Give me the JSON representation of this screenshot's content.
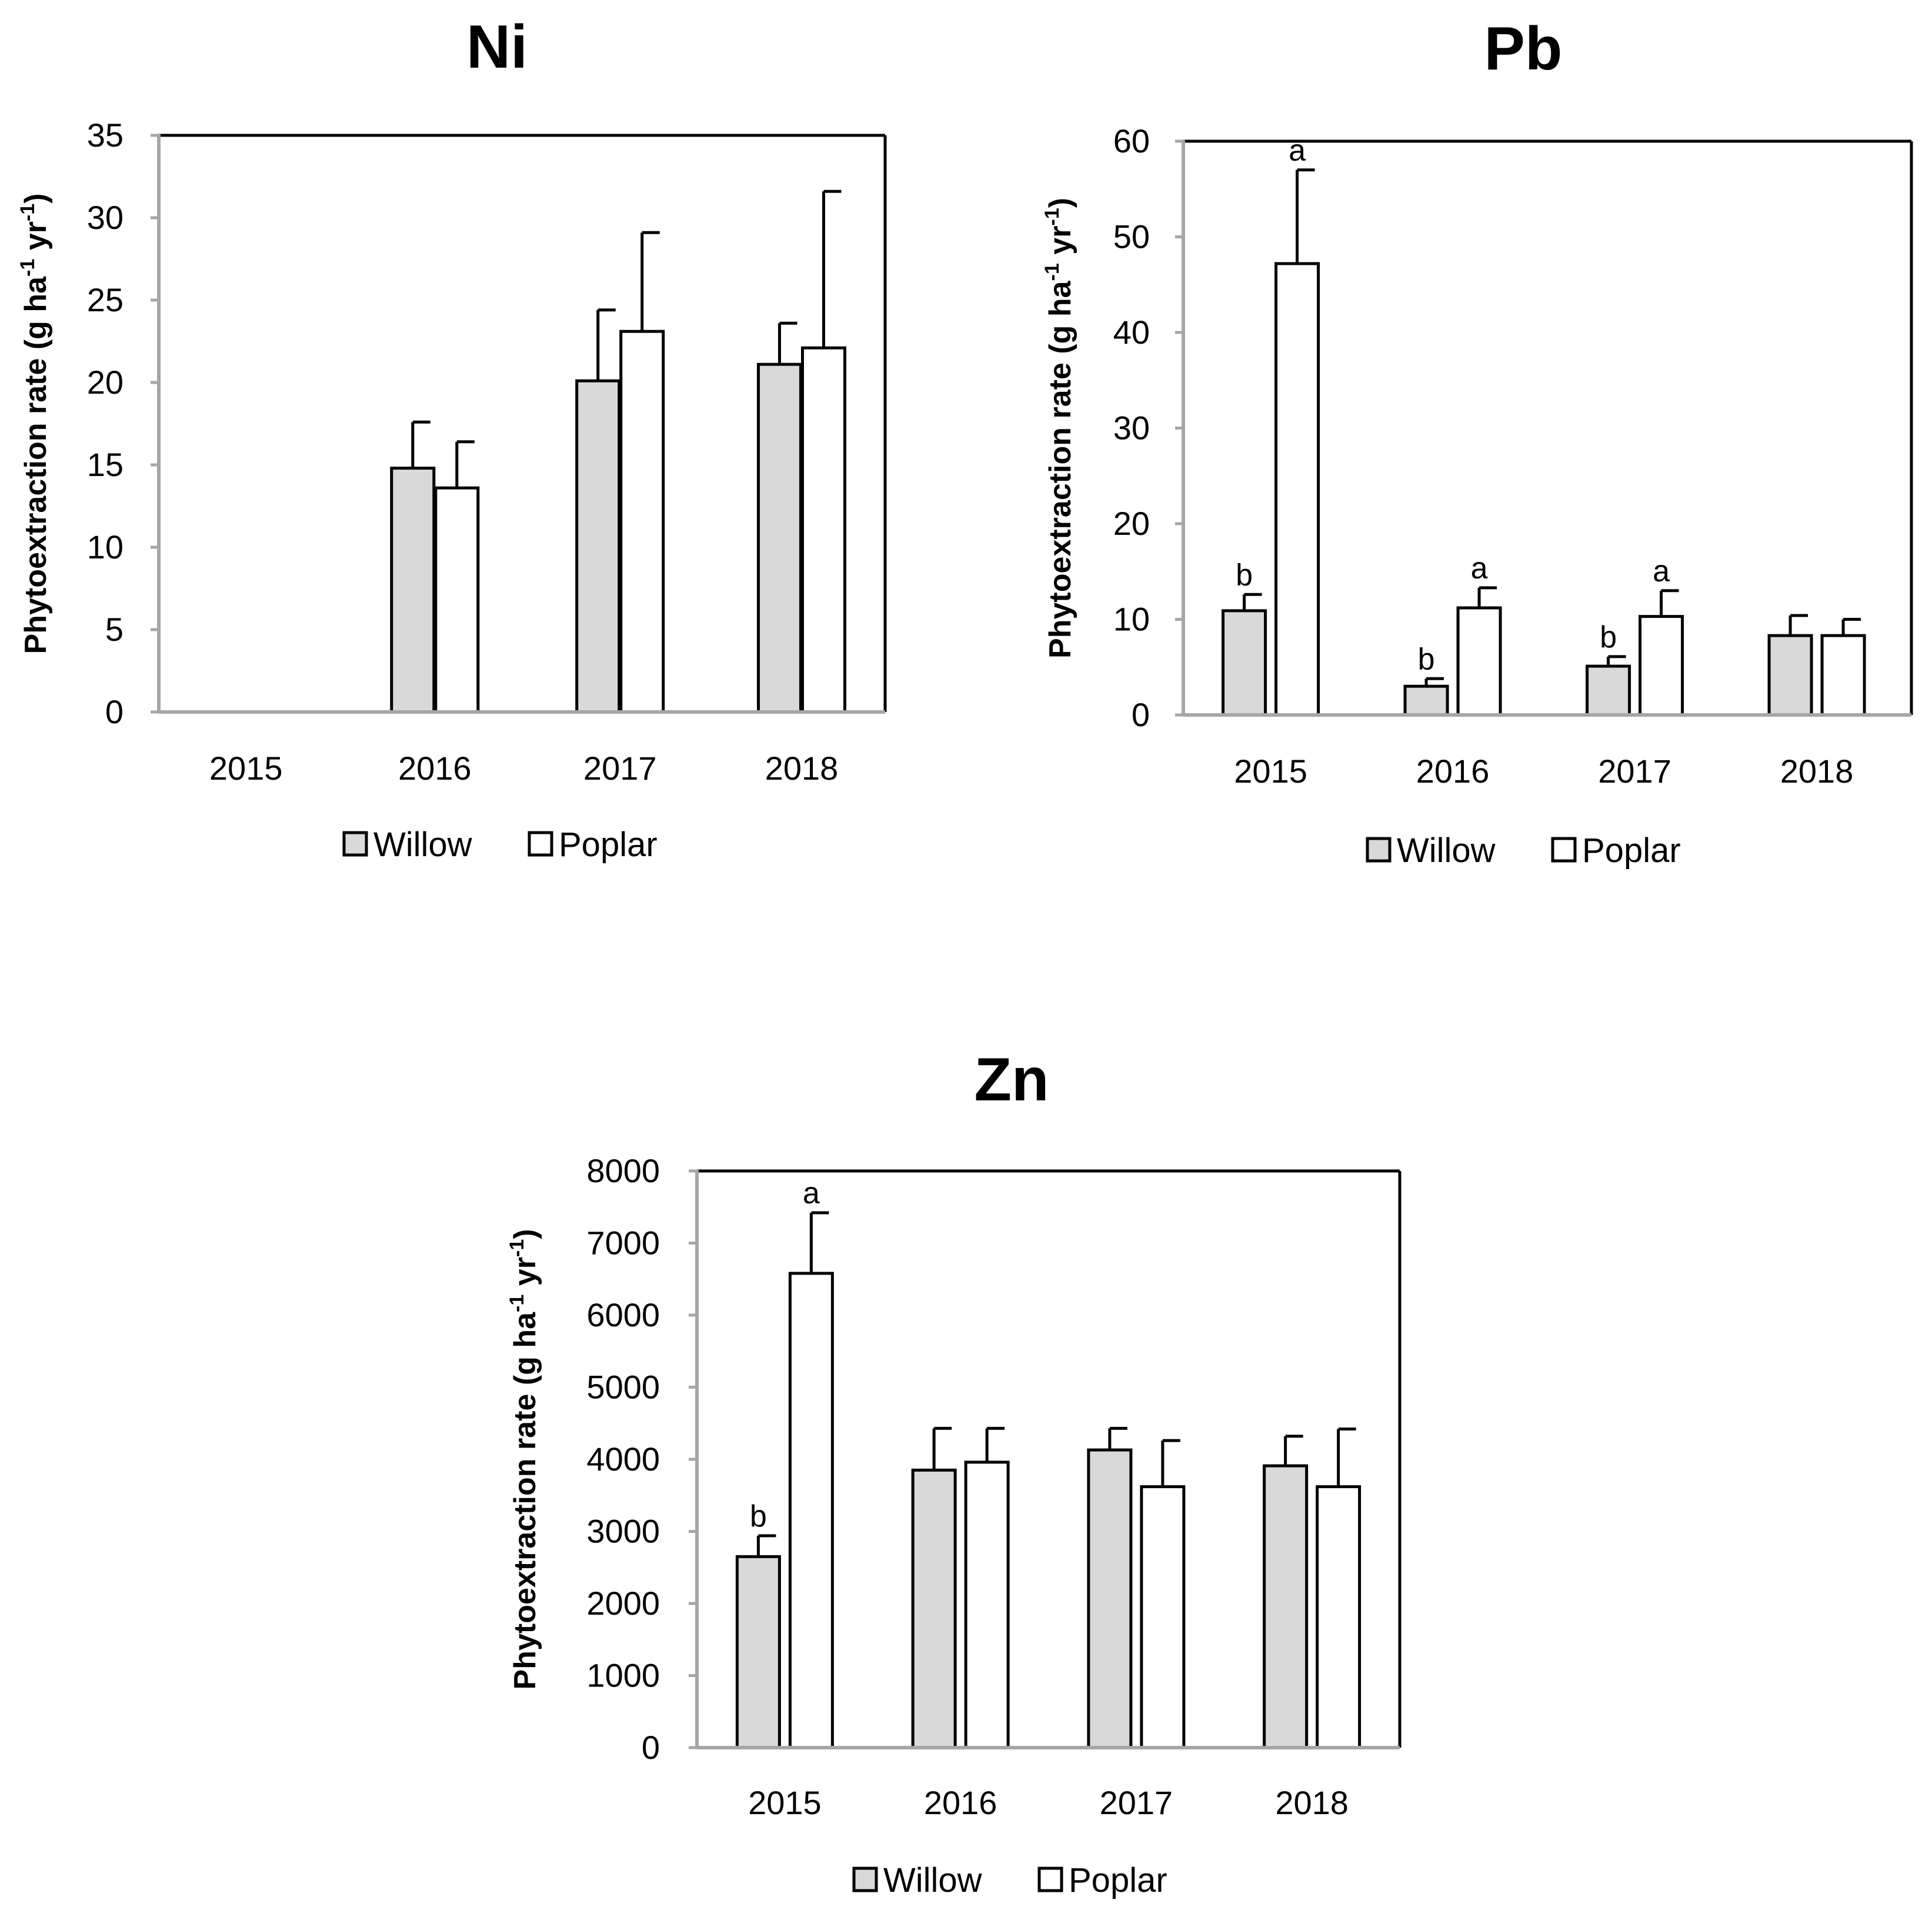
{
  "chart_data": [
    {
      "type": "bar",
      "title": "Ni",
      "ylabel": {
        "main": "Phytoextraction rate (g ha",
        "sup1": "-1",
        "mid": " yr",
        "sup2": "-1",
        "end": ")"
      },
      "ylim": [
        0,
        35
      ],
      "yticks": [
        "0",
        "5",
        "10",
        "15",
        "20",
        "25",
        "30",
        "35"
      ],
      "categories": [
        "2015",
        "2016",
        "2017",
        "2018"
      ],
      "series": [
        {
          "name": "Willow",
          "values": [
            0,
            14.8,
            20.1,
            21.1
          ],
          "errors": [
            0,
            2.8,
            4.3,
            2.5
          ],
          "letters": [
            "",
            "",
            "",
            ""
          ]
        },
        {
          "name": "Poplar",
          "values": [
            0,
            13.6,
            23.1,
            22.1
          ],
          "errors": [
            0,
            2.8,
            6.0,
            9.5
          ],
          "letters": [
            "",
            "",
            "",
            ""
          ]
        }
      ]
    },
    {
      "type": "bar",
      "title": "Pb",
      "ylabel": {
        "main": "Phytoextraction rate (g ha",
        "sup1": "-1",
        "mid": " yr",
        "sup2": "-1",
        "end": ")"
      },
      "ylim": [
        0,
        60
      ],
      "yticks": [
        "0",
        "10",
        "20",
        "30",
        "40",
        "50",
        "60"
      ],
      "categories": [
        "2015",
        "2016",
        "2017",
        "2018"
      ],
      "series": [
        {
          "name": "Willow",
          "values": [
            10.9,
            3.0,
            5.1,
            8.3
          ],
          "errors": [
            1.7,
            0.8,
            1.0,
            2.1
          ],
          "letters": [
            "b",
            "b",
            "b",
            ""
          ]
        },
        {
          "name": "Poplar",
          "values": [
            47.2,
            11.2,
            10.3,
            8.3
          ],
          "errors": [
            9.8,
            2.1,
            2.7,
            1.7
          ],
          "letters": [
            "a",
            "a",
            "a",
            ""
          ]
        }
      ]
    },
    {
      "type": "bar",
      "title": "Zn",
      "ylabel": {
        "main": "Phytoextraction rate (g ha",
        "sup1": "-1",
        "mid": " yr",
        "sup2": "-1",
        "end": ")"
      },
      "ylim": [
        0,
        8000
      ],
      "yticks": [
        "0",
        "1000",
        "2000",
        "3000",
        "4000",
        "5000",
        "6000",
        "7000",
        "8000"
      ],
      "categories": [
        "2015",
        "2016",
        "2017",
        "2018"
      ],
      "series": [
        {
          "name": "Willow",
          "values": [
            2650,
            3850,
            4130,
            3910
          ],
          "errors": [
            290,
            580,
            300,
            410
          ],
          "letters": [
            "b",
            "",
            "",
            ""
          ]
        },
        {
          "name": "Poplar",
          "values": [
            6580,
            3960,
            3620,
            3620
          ],
          "errors": [
            840,
            470,
            640,
            800
          ],
          "letters": [
            "a",
            "",
            "",
            ""
          ]
        }
      ]
    }
  ],
  "colors": {
    "willow": "#d9d9d9",
    "poplar": "#ffffff",
    "axis": "#a6a6a6",
    "frame": "#000000"
  }
}
